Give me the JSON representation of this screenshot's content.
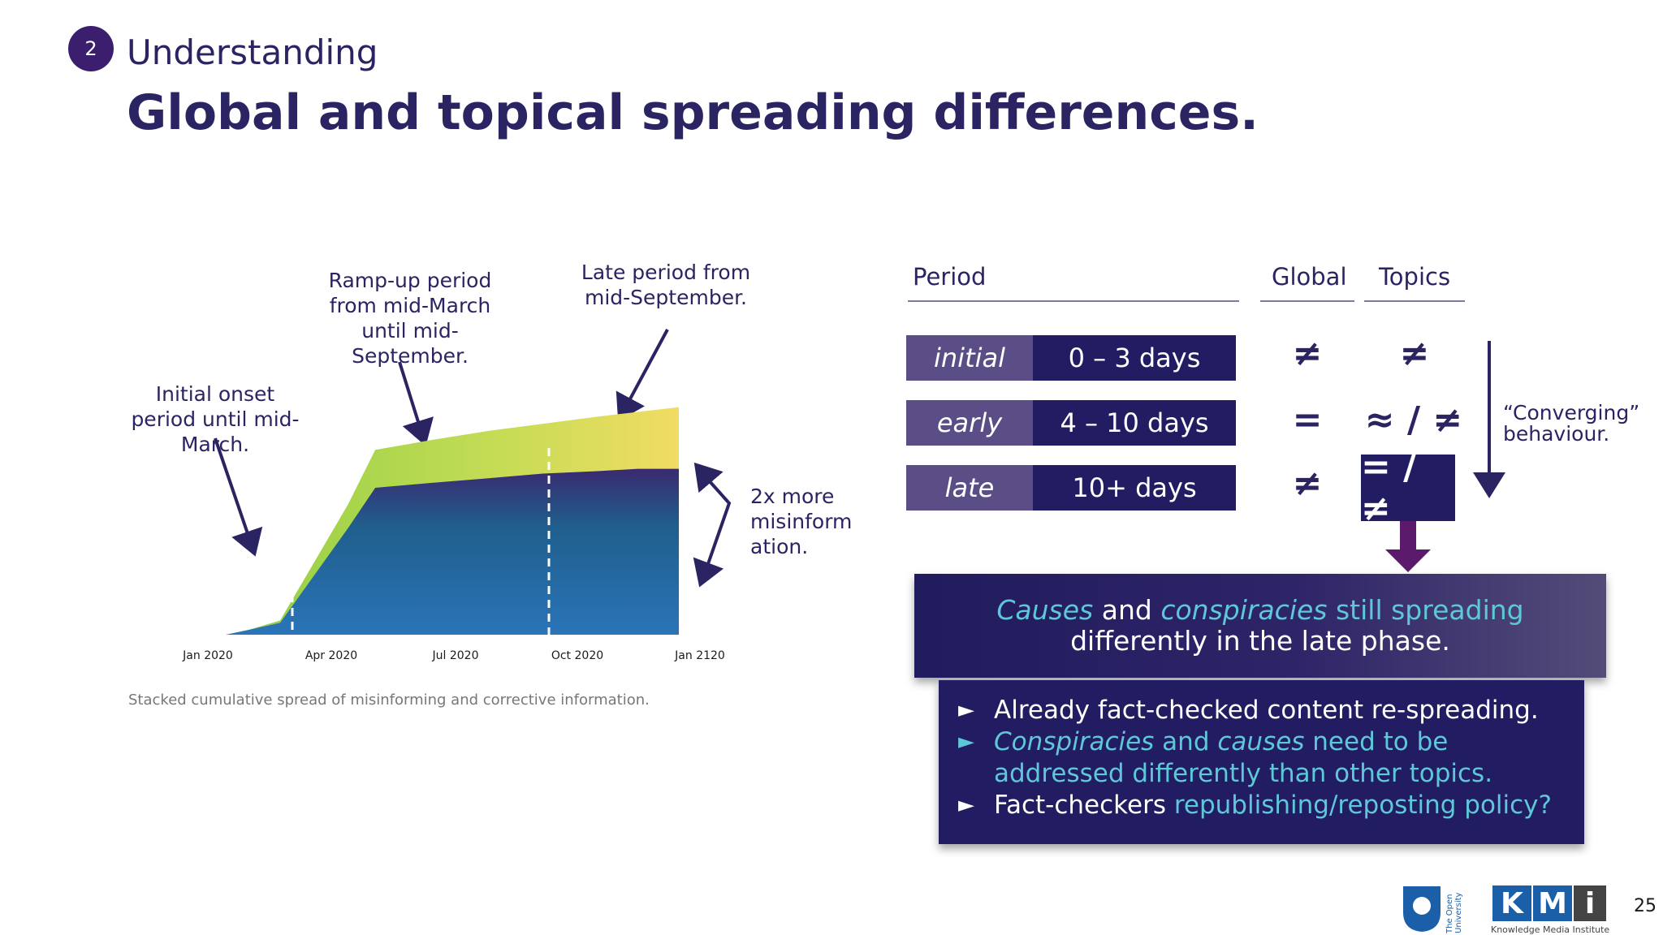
{
  "header": {
    "section_number": "2",
    "section_name": "Understanding",
    "title": "Global and topical spreading differences."
  },
  "annotations": {
    "initial": "Initial onset period until mid-March.",
    "rampup": "Ramp-up period from mid-March until mid-September.",
    "late": "Late period from mid-September.",
    "twox": "2x more misinform ation."
  },
  "chart_data": {
    "type": "area",
    "x_ticks": [
      "Jan 2020",
      "Apr 2020",
      "Jul 2020",
      "Oct 2020",
      "Jan 2120"
    ],
    "caption": "Stacked cumulative spread of misinforming and corrective information.",
    "series": [
      {
        "color": "#2a6db3",
        "values": [
          0,
          0.02,
          0.05,
          0.45,
          0.62,
          0.64,
          0.66,
          0.68,
          0.69,
          0.7,
          0.7
        ]
      },
      {
        "color": "#9fd44b",
        "values": [
          0,
          0.02,
          0.06,
          0.55,
          0.78,
          0.82,
          0.86,
          0.89,
          0.92,
          0.94,
          0.96
        ]
      }
    ],
    "x_positions": [
      0,
      0.05,
      0.12,
      0.27,
      0.33,
      0.45,
      0.58,
      0.7,
      0.82,
      0.91,
      1.0
    ],
    "period_markers": [
      "mid-March",
      "mid-September"
    ]
  },
  "table": {
    "headers": {
      "period": "Period",
      "global": "Global",
      "topics": "Topics"
    },
    "rows": [
      {
        "label": "initial",
        "range": "0 – 3 days",
        "global": "≠",
        "topics": "≠"
      },
      {
        "label": "early",
        "range": "4 – 10 days",
        "global": "=",
        "topics": "≈ / ≠"
      },
      {
        "label": "late",
        "range": "10+ days",
        "global": "≠",
        "topics": "= / ≠"
      }
    ],
    "converging": "“Converging” behaviour."
  },
  "banner": {
    "w1": "Causes",
    "t1": " and ",
    "w2": "conspiracies",
    "t2": " ",
    "w3": "still spreading",
    "t3": " differently in the late phase."
  },
  "bullets": [
    {
      "parts": [
        "Already fact-checked content re-spreading."
      ]
    },
    {
      "parts": [
        "Conspiracies",
        " and ",
        "causes",
        " need to be addressed differently than other topics."
      ]
    },
    {
      "parts": [
        "Fact-checkers ",
        "republishing/reposting policy?"
      ]
    }
  ],
  "footer": {
    "ou_label": "The Open University",
    "kmi_text": "KMi",
    "kmi_subtitle": "Knowledge Media Institute",
    "page_number": "25"
  },
  "colors": {
    "navy": "#221d62",
    "purple": "#5b4e87",
    "teal": "#5ec8d8",
    "arrow": "#5b1a6b"
  }
}
